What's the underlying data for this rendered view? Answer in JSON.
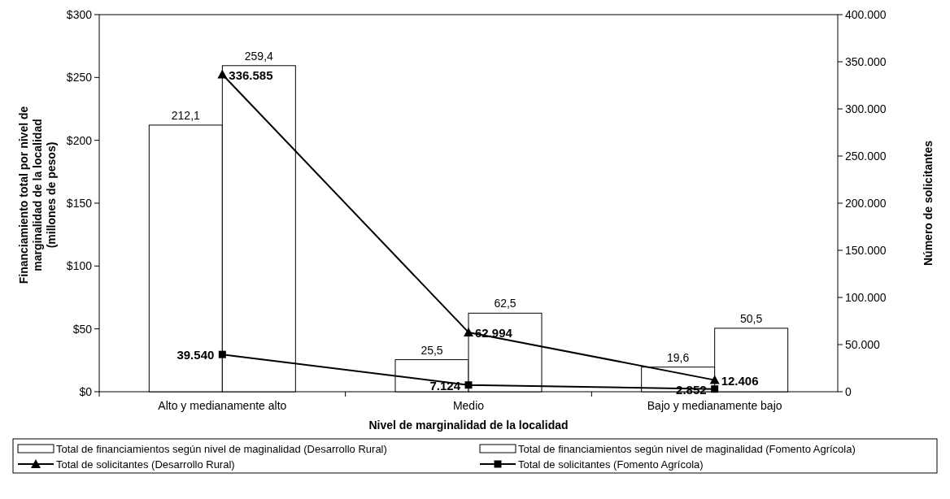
{
  "chart_data": {
    "type": "bar",
    "xlabel": "Nivel de marginalidad de la localidad",
    "ylabel": "Financiamiento total por nivel de marginalidad de la localidad (millones de pesos)",
    "y2label": "Número de solicitantes",
    "categories": [
      "Alto y medianamente alto",
      "Medio",
      "Bajo y medianamente bajo"
    ],
    "series": [
      {
        "name": "Total de financiamientos según nivel de maginalidad  (Desarrollo Rural)",
        "color": "#ffffff",
        "values": [
          212.1,
          25.5,
          19.6
        ],
        "value_labels": [
          "212,1",
          "25,5",
          "19,6"
        ]
      },
      {
        "name": "Total de financiamientos según nivel de maginalidad  (Fomento Agrícola)",
        "color": "#ffffff",
        "values": [
          259.4,
          62.5,
          50.5
        ],
        "value_labels": [
          "259,4",
          "62,5",
          "50,5"
        ]
      },
      {
        "name": "Total de solicitantes  (Desarrollo Rural)",
        "type": "line",
        "axis": "y2",
        "marker": "triangle",
        "color": "#000000",
        "values": [
          336585,
          62994,
          12406
        ],
        "value_labels": [
          "336.585",
          "62.994",
          "12.406"
        ]
      },
      {
        "name": "Total de solicitantes (Fomento Agrícola)",
        "type": "line",
        "axis": "y2",
        "marker": "square",
        "color": "#000000",
        "values": [
          39540,
          7124,
          2852
        ],
        "value_labels": [
          "39.540",
          "7.124",
          "2.852"
        ]
      }
    ],
    "ylim": [
      0,
      300
    ],
    "yticks": [
      {
        "value": 0,
        "label": "$0"
      },
      {
        "value": 50,
        "label": "$50"
      },
      {
        "value": 100,
        "label": "$100"
      },
      {
        "value": 150,
        "label": "$150"
      },
      {
        "value": 200,
        "label": "$200"
      },
      {
        "value": 250,
        "label": "$250"
      },
      {
        "value": 300,
        "label": "$300"
      }
    ],
    "y2lim": [
      0,
      400000
    ],
    "y2ticks": [
      0,
      {
        "value": 50000,
        "label": "50.000"
      },
      {
        "value": 100000,
        "label": "100.000"
      },
      {
        "value": 150000,
        "label": "150.000"
      },
      {
        "value": 200000,
        "label": "200.000"
      },
      {
        "value": 250000,
        "label": "250.000"
      },
      {
        "value": 300000,
        "label": "300.000"
      },
      {
        "value": 350000,
        "label": "350.000"
      },
      {
        "value": 400000,
        "label": "400.000"
      }
    ],
    "grid": false,
    "legend": "bottom",
    "line_style": "solid"
  }
}
